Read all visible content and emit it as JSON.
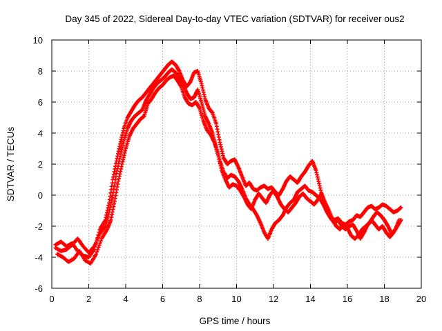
{
  "chart_data": {
    "type": "scatter",
    "title": "Day 345 of 2022, Sidereal Day-to-day VTEC variation (SDTVAR) for receiver ous2",
    "xlabel": "GPS time / hours",
    "ylabel": "SDTVAR / TECUs",
    "xlim": [
      0,
      20
    ],
    "ylim": [
      -6,
      10
    ],
    "xticks": [
      0,
      2,
      4,
      6,
      8,
      10,
      12,
      14,
      16,
      18,
      20
    ],
    "yticks": [
      -6,
      -4,
      -2,
      0,
      2,
      4,
      6,
      8,
      10
    ],
    "grid": true,
    "marker": "plus",
    "series": [
      {
        "name": "track-1",
        "color": "#ff0000",
        "x": [
          0.2,
          0.5,
          0.8,
          1.1,
          1.4,
          1.7,
          2.0,
          2.3,
          2.6,
          2.9,
          3.1,
          3.3,
          3.5,
          3.7,
          3.9,
          4.1,
          4.3,
          4.5,
          4.7,
          4.9,
          5.1,
          5.3,
          5.5,
          5.7,
          5.9,
          6.1,
          6.3,
          6.5,
          6.7,
          6.9,
          7.1,
          7.3,
          7.5,
          7.7,
          7.9,
          8.1,
          8.3,
          8.5,
          8.7,
          8.9,
          9.1,
          9.3,
          9.5,
          9.7,
          9.9,
          10.1,
          10.3,
          10.5,
          10.7,
          10.9,
          11.1,
          11.3,
          11.5,
          11.7,
          11.9,
          12.1,
          12.3,
          12.5,
          12.7,
          12.9,
          13.1,
          13.3,
          13.5,
          13.7,
          13.9,
          14.1,
          14.3,
          14.5,
          14.7,
          14.9,
          15.1,
          15.3,
          15.5,
          15.7,
          15.9,
          16.1,
          16.3,
          16.5,
          16.7,
          16.9,
          17.1,
          17.3,
          17.5,
          17.7,
          17.9,
          18.1,
          18.3,
          18.5,
          18.7,
          18.9
        ],
        "y": [
          -3.2,
          -3.0,
          -3.3,
          -3.1,
          -3.6,
          -3.9,
          -4.0,
          -3.5,
          -2.2,
          -1.6,
          -0.5,
          1.0,
          2.2,
          3.3,
          4.3,
          5.0,
          5.4,
          5.8,
          6.1,
          6.3,
          6.6,
          6.9,
          7.2,
          7.5,
          7.8,
          8.1,
          8.4,
          8.6,
          8.4,
          8.0,
          7.4,
          7.0,
          7.3,
          7.9,
          8.0,
          7.2,
          6.2,
          5.6,
          5.3,
          4.6,
          3.4,
          2.4,
          2.0,
          2.2,
          2.3,
          1.8,
          1.2,
          0.6,
          0.8,
          0.4,
          0.3,
          0.5,
          0.6,
          0.4,
          0.5,
          0.2,
          0.0,
          0.4,
          0.9,
          1.2,
          1.0,
          0.8,
          1.2,
          1.5,
          1.9,
          2.2,
          1.6,
          0.6,
          -0.4,
          -1.0,
          -1.4,
          -1.6,
          -1.5,
          -1.8,
          -1.9,
          -1.7,
          -1.6,
          -1.3,
          -1.4,
          -1.1,
          -0.8,
          -0.7,
          -0.9,
          -0.8,
          -0.6,
          -0.7,
          -0.9,
          -1.1,
          -1.0,
          -0.8
        ]
      },
      {
        "name": "track-2",
        "color": "#ff0000",
        "x": [
          0.2,
          0.5,
          0.8,
          1.1,
          1.4,
          1.7,
          2.0,
          2.3,
          2.6,
          2.9,
          3.1,
          3.3,
          3.5,
          3.7,
          3.9,
          4.1,
          4.3,
          4.5,
          4.7,
          4.9,
          5.1,
          5.3,
          5.5,
          5.7,
          5.9,
          6.1,
          6.3,
          6.5,
          6.7,
          6.9,
          7.1,
          7.3,
          7.5,
          7.7,
          7.9,
          8.1,
          8.3,
          8.5,
          8.7,
          8.9,
          9.1,
          9.3,
          9.5,
          9.7,
          9.9,
          10.1,
          10.3,
          10.5,
          10.7,
          10.9,
          11.1,
          11.3,
          11.5,
          11.7,
          11.9,
          12.1,
          12.3,
          12.5,
          12.7,
          12.9,
          13.1,
          13.3,
          13.5,
          13.7,
          13.9,
          14.1,
          14.3,
          14.5,
          14.7,
          14.9,
          15.1,
          15.3,
          15.5,
          15.7,
          15.9,
          16.1,
          16.3,
          16.5,
          16.7,
          16.9,
          17.1,
          17.3,
          17.5,
          17.7,
          17.9,
          18.1,
          18.3,
          18.5,
          18.7,
          18.9
        ],
        "y": [
          -3.4,
          -3.6,
          -3.5,
          -3.2,
          -2.8,
          -3.3,
          -3.7,
          -3.3,
          -2.5,
          -2.0,
          -1.1,
          0.0,
          1.4,
          2.5,
          3.5,
          4.3,
          4.8,
          5.1,
          5.3,
          5.5,
          6.1,
          6.5,
          6.9,
          7.2,
          7.4,
          7.6,
          7.9,
          8.1,
          7.9,
          7.6,
          7.2,
          6.6,
          6.2,
          6.3,
          6.8,
          6.0,
          5.1,
          4.6,
          4.0,
          3.1,
          2.2,
          1.5,
          1.1,
          1.3,
          1.2,
          0.9,
          0.4,
          -0.2,
          -0.6,
          -0.9,
          -1.3,
          -1.8,
          -2.4,
          -2.8,
          -2.2,
          -1.8,
          -1.6,
          -1.3,
          -0.8,
          -0.5,
          -0.3,
          0.2,
          0.4,
          0.6,
          0.3,
          0.2,
          0.0,
          -0.2,
          -0.6,
          -1.1,
          -1.5,
          -1.8,
          -1.6,
          -2.0,
          -2.2,
          -2.0,
          -1.9,
          -2.3,
          -2.8,
          -2.4,
          -1.9,
          -1.6,
          -1.9,
          -2.2,
          -2.0,
          -2.4,
          -2.7,
          -2.4,
          -2.0,
          -1.6
        ]
      },
      {
        "name": "track-3",
        "color": "#ff0000",
        "x": [
          0.3,
          0.6,
          0.9,
          1.2,
          1.5,
          1.8,
          2.1,
          2.4,
          2.7,
          3.0,
          3.2,
          3.4,
          3.6,
          3.8,
          4.0,
          4.2,
          4.4,
          4.6,
          4.8,
          5.0,
          5.2,
          5.4,
          5.6,
          5.8,
          6.0,
          6.2,
          6.4,
          6.6,
          6.8,
          7.0,
          7.2,
          7.4,
          7.6,
          7.8,
          8.0,
          8.2,
          8.4,
          8.6,
          8.8,
          9.0,
          9.2,
          9.4,
          9.6,
          9.8,
          10.0,
          10.2,
          10.4,
          10.6,
          10.8,
          11.0,
          11.2,
          11.4,
          11.6,
          11.8,
          12.0,
          12.2,
          12.4,
          12.6,
          12.8,
          13.0,
          13.2,
          13.4,
          13.6,
          13.8,
          14.0,
          14.2,
          14.4,
          14.6,
          14.8,
          15.0,
          15.2,
          15.4,
          15.6,
          15.8,
          16.0,
          16.2,
          16.4,
          16.6,
          16.8,
          17.0,
          17.2,
          17.4,
          17.6,
          17.8,
          18.0,
          18.2,
          18.4,
          18.6,
          18.8
        ],
        "y": [
          -3.8,
          -4.0,
          -4.3,
          -4.1,
          -3.6,
          -4.2,
          -4.4,
          -3.8,
          -2.8,
          -2.2,
          -1.6,
          -0.4,
          0.9,
          2.0,
          3.0,
          3.8,
          4.3,
          4.6,
          4.9,
          5.1,
          5.9,
          6.2,
          6.6,
          6.9,
          7.1,
          7.4,
          7.6,
          7.7,
          7.4,
          7.0,
          6.3,
          5.9,
          5.8,
          6.0,
          5.6,
          4.8,
          4.2,
          3.9,
          3.4,
          2.6,
          1.6,
          1.0,
          0.5,
          0.7,
          0.6,
          0.3,
          -0.1,
          -0.6,
          -0.9,
          -0.3,
          0.1,
          -0.2,
          -0.5,
          0.0,
          0.3,
          -0.1,
          -0.6,
          -0.9,
          -1.1,
          -0.8,
          -0.5,
          -0.1,
          0.1,
          -0.2,
          -0.4,
          -0.6,
          -0.3,
          0.1,
          -0.5,
          -1.0,
          -1.6,
          -2.0,
          -2.2,
          -1.9,
          -2.1,
          -2.6,
          -2.8,
          -2.6,
          -2.2,
          -2.0,
          -1.8,
          -1.4,
          -1.1,
          -1.3,
          -1.6,
          -2.0,
          -2.5,
          -2.2,
          -1.6
        ]
      }
    ]
  }
}
